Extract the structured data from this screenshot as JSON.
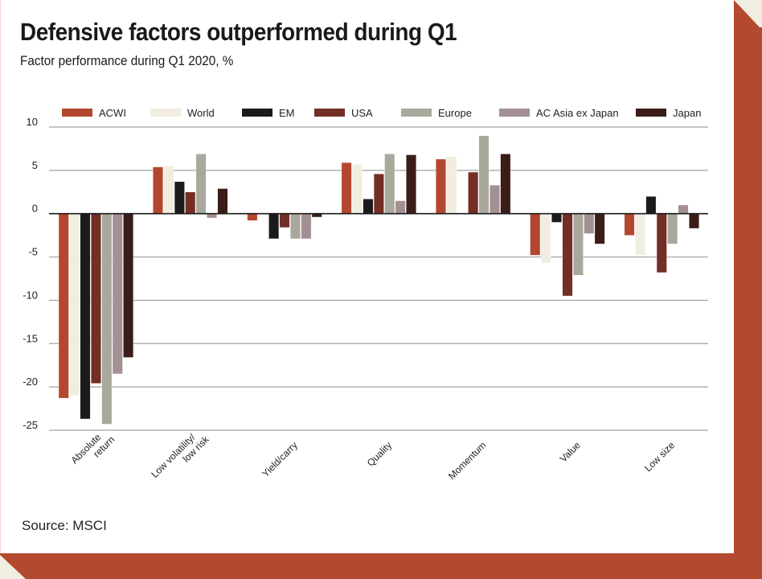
{
  "header": {
    "title": "Defensive factors outperformed during Q1",
    "subtitle": "Factor performance during Q1 2020, %"
  },
  "footer": {
    "source": "Source: MSCI"
  },
  "colors": {
    "frame_accent": "#b3492e",
    "frame_background": "#f1ede0",
    "gridline": "#a0a0a0",
    "zero_line": "#1a1a1a"
  },
  "chart_data": {
    "type": "bar",
    "title": "Defensive factors outperformed during Q1",
    "subtitle": "Factor performance during Q1 2020, %",
    "xlabel": "",
    "ylabel": "",
    "ylim": [
      -25,
      10
    ],
    "yticks": [
      10,
      5,
      0,
      -5,
      -10,
      -15,
      -20,
      -25
    ],
    "grid": true,
    "legend_position": "top",
    "categories": [
      [
        "Absolute",
        "return"
      ],
      [
        "Low volatility/",
        "low risk"
      ],
      [
        "Yield/carry"
      ],
      [
        "Quality"
      ],
      [
        "Momentum"
      ],
      [
        "Value"
      ],
      [
        "Low size"
      ]
    ],
    "series": [
      {
        "name": "ACWI",
        "color": "#b3472e",
        "values": [
          -21.3,
          5.4,
          -0.8,
          5.9,
          6.3,
          -4.8,
          -2.5
        ]
      },
      {
        "name": "World",
        "color": "#f1ede0",
        "values": [
          -21.0,
          5.5,
          -0.1,
          5.7,
          6.6,
          -5.7,
          -4.8
        ]
      },
      {
        "name": "EM",
        "color": "#1b1b1b",
        "values": [
          -23.7,
          3.7,
          -2.9,
          1.7,
          0.0,
          -1.0,
          2.0
        ]
      },
      {
        "name": "USA",
        "color": "#732e25",
        "values": [
          -19.6,
          2.5,
          -1.6,
          4.6,
          4.8,
          -9.5,
          -6.8
        ]
      },
      {
        "name": "Europe",
        "color": "#a9a89c",
        "values": [
          -24.3,
          6.9,
          -2.9,
          6.9,
          9.0,
          -7.1,
          -3.5
        ]
      },
      {
        "name": "AC Asia ex Japan",
        "color": "#a39093",
        "values": [
          -18.5,
          -0.5,
          -2.9,
          1.5,
          3.3,
          -2.3,
          1.0
        ]
      },
      {
        "name": "Japan",
        "color": "#3a1d17",
        "values": [
          -16.6,
          2.9,
          -0.4,
          6.8,
          6.9,
          -3.5,
          -1.7
        ]
      }
    ]
  }
}
